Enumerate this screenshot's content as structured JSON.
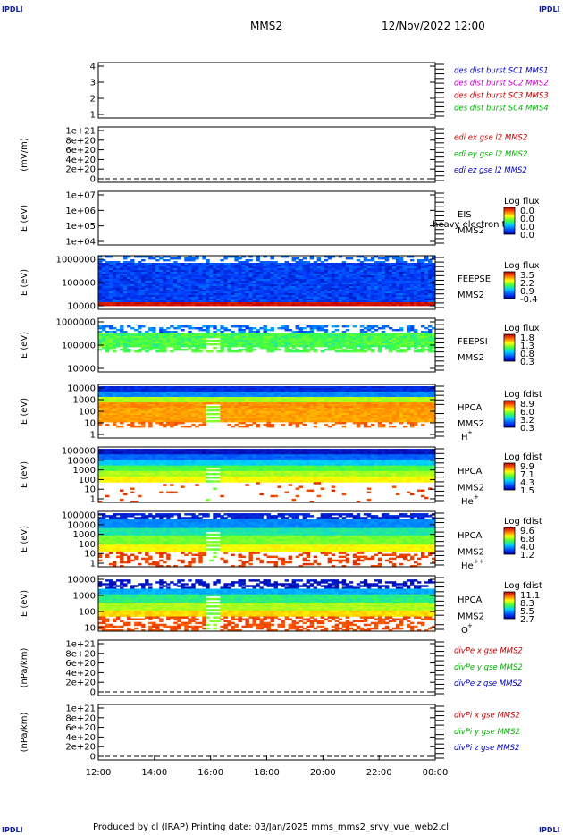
{
  "corners": {
    "label": "IPDLI"
  },
  "header": {
    "spacecraft": "MMS2",
    "datetime": "12/Nov/2022 12:00"
  },
  "footer": {
    "text": "Produced by cl (IRAP)   Printing date: 03/Jan/2025   mms_mms2_srvy_vue_web2.cl"
  },
  "xaxis": {
    "ticks": [
      "12:00",
      "14:00",
      "16:00",
      "18:00",
      "20:00",
      "22:00",
      "00:00"
    ]
  },
  "chart_data": [
    {
      "id": "p1",
      "type": "line",
      "ylabel": "",
      "yticks": [
        "4",
        "3",
        "2",
        "1"
      ],
      "legend": [
        {
          "text": "des dist burst SC1 MMS1",
          "color": "#0000c0"
        },
        {
          "text": "des dist burst SC2 MMS2",
          "color": "#c000c0"
        },
        {
          "text": "des dist burst SC3 MMS3",
          "color": "#c00000"
        },
        {
          "text": "des dist burst SC4 MMS4",
          "color": "#00b000"
        }
      ],
      "series": []
    },
    {
      "id": "p2",
      "type": "line",
      "ylabel": "(mV/m)",
      "yticks": [
        "1e+21",
        "8e+20",
        "6e+20",
        "4e+20",
        "2e+20",
        "0"
      ],
      "legend": [
        {
          "text": "edi ex gse l2 MMS2",
          "color": "#c00000"
        },
        {
          "text": "edi ey gse l2 MMS2",
          "color": "#00b000"
        },
        {
          "text": "edi ez gse l2 MMS2",
          "color": "#0000c0"
        }
      ],
      "zero_line": true,
      "series": []
    },
    {
      "id": "p3",
      "type": "heatmap",
      "ylabel": "E (eV)",
      "yticks": [
        "1e+07",
        "1e+06",
        "1e+05",
        "1e+04"
      ],
      "instrument": [
        "EIS",
        "MMS2"
      ],
      "overlay": "heavy electron to",
      "cbar": {
        "title": "Log flux",
        "labels": [
          "0.0",
          "0.0",
          "0.0",
          "0.0"
        ]
      }
    },
    {
      "id": "p4",
      "type": "heatmap",
      "ylabel": "E (eV)",
      "yticks": [
        "1000000",
        "100000",
        "10000"
      ],
      "instrument": [
        "FEEPSE",
        "MMS2"
      ],
      "cbar": {
        "title": "Log flux",
        "labels": [
          "3.5",
          "2.2",
          "0.9",
          "-0.4"
        ]
      }
    },
    {
      "id": "p5",
      "type": "heatmap",
      "ylabel": "E (eV)",
      "yticks": [
        "1000000",
        "100000",
        "10000"
      ],
      "instrument": [
        "FEEPSI",
        "MMS2"
      ],
      "cbar": {
        "title": "Log flux",
        "labels": [
          "1.8",
          "1.3",
          "0.8",
          "0.3"
        ]
      }
    },
    {
      "id": "p6",
      "type": "heatmap",
      "ylabel": "E (eV)",
      "yticks": [
        "10000",
        "1000",
        "100",
        "10",
        "1"
      ],
      "instrument": [
        "HPCA",
        "MMS2"
      ],
      "species": "H",
      "charge": "+",
      "cbar": {
        "title": "Log fdist",
        "labels": [
          "8.9",
          "6.0",
          "3.2",
          "0.3"
        ]
      }
    },
    {
      "id": "p7",
      "type": "heatmap",
      "ylabel": "E (eV)",
      "yticks": [
        "100000",
        "10000",
        "1000",
        "100",
        "10",
        "1"
      ],
      "instrument": [
        "HPCA",
        "MMS2"
      ],
      "species": "He",
      "charge": "+",
      "cbar": {
        "title": "Log fdist",
        "labels": [
          "9.9",
          "7.1",
          "4.3",
          "1.5"
        ]
      }
    },
    {
      "id": "p8",
      "type": "heatmap",
      "ylabel": "E (eV)",
      "yticks": [
        "100000",
        "10000",
        "1000",
        "100",
        "10",
        "1"
      ],
      "instrument": [
        "HPCA",
        "MMS2"
      ],
      "species": "He",
      "charge": "++",
      "cbar": {
        "title": "Log fdist",
        "labels": [
          "9.6",
          "6.8",
          "4.0",
          "1.2"
        ]
      }
    },
    {
      "id": "p9",
      "type": "heatmap",
      "ylabel": "E (eV)",
      "yticks": [
        "10000",
        "1000",
        "100",
        "10"
      ],
      "instrument": [
        "HPCA",
        "MMS2"
      ],
      "species": "O",
      "charge": "+",
      "cbar": {
        "title": "Log fdist",
        "labels": [
          "11.1",
          "8.3",
          "5.5",
          "2.7"
        ]
      }
    },
    {
      "id": "p10",
      "type": "line",
      "ylabel": "(nPa/km)",
      "yticks": [
        "1e+21",
        "8e+20",
        "6e+20",
        "4e+20",
        "2e+20",
        "0"
      ],
      "legend": [
        {
          "text": "divPe x gse MMS2",
          "color": "#c00000"
        },
        {
          "text": "divPe y gse MMS2",
          "color": "#00b000"
        },
        {
          "text": "divPe z gse MMS2",
          "color": "#0000c0"
        }
      ],
      "zero_line": true,
      "series": []
    },
    {
      "id": "p11",
      "type": "line",
      "ylabel": "(nPa/km)",
      "yticks": [
        "1e+21",
        "8e+20",
        "6e+20",
        "4e+20",
        "2e+20",
        "0"
      ],
      "legend": [
        {
          "text": "divPi x gse MMS2",
          "color": "#c00000"
        },
        {
          "text": "divPi y gse MMS2",
          "color": "#00b000"
        },
        {
          "text": "divPi z gse MMS2",
          "color": "#0000c0"
        }
      ],
      "zero_line": true,
      "series": []
    }
  ]
}
